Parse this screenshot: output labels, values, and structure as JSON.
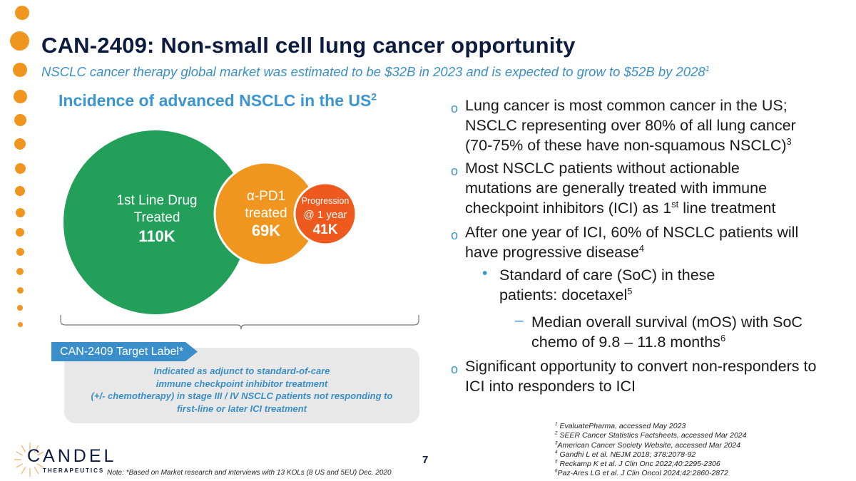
{
  "header": {
    "title": "CAN-2409: Non-small cell lung cancer opportunity",
    "subtitle": "NSCLC cancer therapy global market was estimated to be $32B in 2023 and is expected to grow to $52B by 2028",
    "subtitle_sup": "1"
  },
  "chart": {
    "title": "Incidence of advanced NSCLC in the US",
    "title_sup": "2",
    "circles": [
      {
        "label_line1": "1st Line Drug",
        "label_line2": "Treated",
        "value": "110K",
        "color": "#22a05a"
      },
      {
        "label_line1": "α-PD1",
        "label_line2": "treated",
        "value": "69K",
        "color": "#f0961e"
      },
      {
        "label_line1": "Progression",
        "label_line2": "@ 1 year",
        "value": "41K",
        "color": "#ee5a1e"
      }
    ]
  },
  "target_label": {
    "tag": "CAN-2409 Target Label*",
    "lines": [
      "Indicated as adjunct to standard-of-care",
      "immune checkpoint inhibitor treatment",
      "(+/- chemotherapy) in stage III / IV NSCLC patients not responding to",
      "first-line or later ICI treatment"
    ]
  },
  "bullets": {
    "p1": {
      "text": "Lung cancer is most common cancer in the US; NSCLC representing over 80% of all lung cancer (70-75% of these have non-squamous NSCLC)",
      "sup": "3"
    },
    "p2": {
      "text": "Most NSCLC patients without actionable mutations are generally treated with immune checkpoint inhibitors (ICI) as 1",
      "sup": "st",
      "tail": " line treatment"
    },
    "p3": {
      "text": "After one year of ICI, 60% of NSCLC patients will have progressive disease",
      "sup": "4"
    },
    "p3a": {
      "text": "Standard of care (SoC) in these patients: docetaxel",
      "sup": "5"
    },
    "p3b": {
      "text": "Median overall survival (mOS) with SoC chemo of 9.8 – 11.8 months",
      "sup": "6"
    },
    "p4": {
      "text": "Significant opportunity to convert non-responders to ICI into responders to ICI"
    },
    "marker_o": "o",
    "marker_dot": "•",
    "marker_dash": "–"
  },
  "references": [
    {
      "n": "1",
      "text": "EvaluatePharma, accessed May 2023"
    },
    {
      "n": "2",
      "text": "SEER Cancer Statistics Factsheets, accessed Mar 2024"
    },
    {
      "n": "3",
      "text": "American Cancer Society Website, accessed Mar 2024"
    },
    {
      "n": "4",
      "text": "Gandhi L et al.  NEJM 2018; 378:2078-92"
    },
    {
      "n": "5",
      "text": "Reckamp K et al. J Clin Onc 2022;40:2295-2306"
    },
    {
      "n": "6",
      "text": "Paz-Ares LG et al. J Clin Oncol 2024;42:2860-2872"
    }
  ],
  "footer": {
    "note": "Note: *Based on Market research and interviews with 13 KOLs (8 US and 5EU) Dec. 2020",
    "page": "7",
    "logo_name": "CANDEL",
    "logo_sub": "THERAPEUTICS"
  },
  "colors": {
    "accent_orange": "#f0961e",
    "title_navy": "#0d1b3e",
    "accent_blue": "#3b95d0"
  }
}
